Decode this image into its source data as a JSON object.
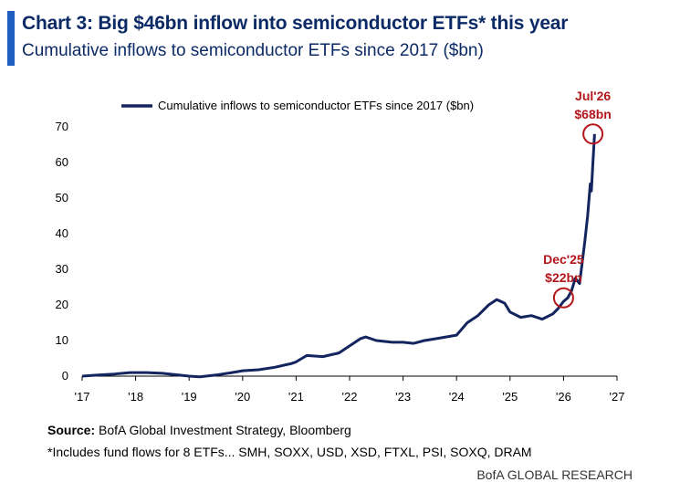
{
  "header": {
    "title": "Chart 3: Big $46bn inflow into semiconductor ETFs* this year",
    "subtitle": "Cumulative inflows to semiconductor ETFs since 2017 ($bn)"
  },
  "colors": {
    "accent": "#1f5fbf",
    "title": "#0b2a66",
    "series": "#13255e",
    "annotation": "#b4161b"
  },
  "chart_data": {
    "type": "line",
    "title": "",
    "xlabel": "",
    "ylabel": "",
    "xlim": [
      2017.0,
      2027.0
    ],
    "ylim": [
      0,
      70
    ],
    "x_ticks": [
      "'17",
      "'18",
      "'19",
      "'20",
      "'21",
      "'22",
      "'23",
      "'24",
      "'25",
      "'26",
      "'27"
    ],
    "y_ticks": [
      "0",
      "10",
      "20",
      "30",
      "40",
      "50",
      "60",
      "70"
    ],
    "grid": false,
    "legend_position": "top",
    "series": [
      {
        "name": "Cumulative inflows to semiconductor ETFs since 2017 ($bn)",
        "color": "#13255e",
        "x": [
          2017.0,
          2017.3,
          2017.6,
          2017.9,
          2018.2,
          2018.5,
          2018.8,
          2019.0,
          2019.2,
          2019.5,
          2019.8,
          2020.0,
          2020.3,
          2020.6,
          2020.9,
          2021.0,
          2021.2,
          2021.5,
          2021.8,
          2022.0,
          2022.2,
          2022.3,
          2022.5,
          2022.8,
          2023.0,
          2023.2,
          2023.4,
          2023.6,
          2023.8,
          2024.0,
          2024.2,
          2024.4,
          2024.6,
          2024.75,
          2024.9,
          2025.0,
          2025.2,
          2025.4,
          2025.6,
          2025.8,
          2025.9,
          2026.0,
          2026.08,
          2026.15,
          2026.22,
          2026.3,
          2026.35,
          2026.4,
          2026.45,
          2026.5,
          2026.52,
          2026.55,
          2026.58
        ],
        "y": [
          0.0,
          0.3,
          0.6,
          1.0,
          1.0,
          0.8,
          0.3,
          0.0,
          -0.2,
          0.3,
          1.0,
          1.5,
          1.8,
          2.5,
          3.5,
          4.0,
          5.8,
          5.5,
          6.5,
          8.5,
          10.5,
          11.0,
          10.0,
          9.5,
          9.5,
          9.2,
          10.0,
          10.5,
          11.0,
          11.5,
          15.0,
          17.0,
          20.0,
          21.5,
          20.5,
          18.0,
          16.5,
          17.0,
          16.0,
          17.5,
          19.0,
          21.0,
          22.0,
          24.0,
          27.5,
          26.0,
          32.0,
          38.0,
          45.0,
          54.0,
          52.0,
          60.0,
          68.0
        ]
      }
    ],
    "annotations": [
      {
        "label_top": "Dec'25",
        "label_bottom": "$22bn",
        "x": 2026.0,
        "y": 22.0
      },
      {
        "label_top": "Jul'26",
        "label_bottom": "$68bn",
        "x": 2026.55,
        "y": 68.0
      }
    ]
  },
  "footer": {
    "source_prefix": "Source:",
    "source_text": " BofA Global Investment Strategy, Bloomberg",
    "note": "*Includes fund flows for 8 ETFs... SMH, SOXX, USD, XSD, FTXL, PSI, SOXQ, DRAM",
    "brand": "BofA GLOBAL RESEARCH"
  }
}
